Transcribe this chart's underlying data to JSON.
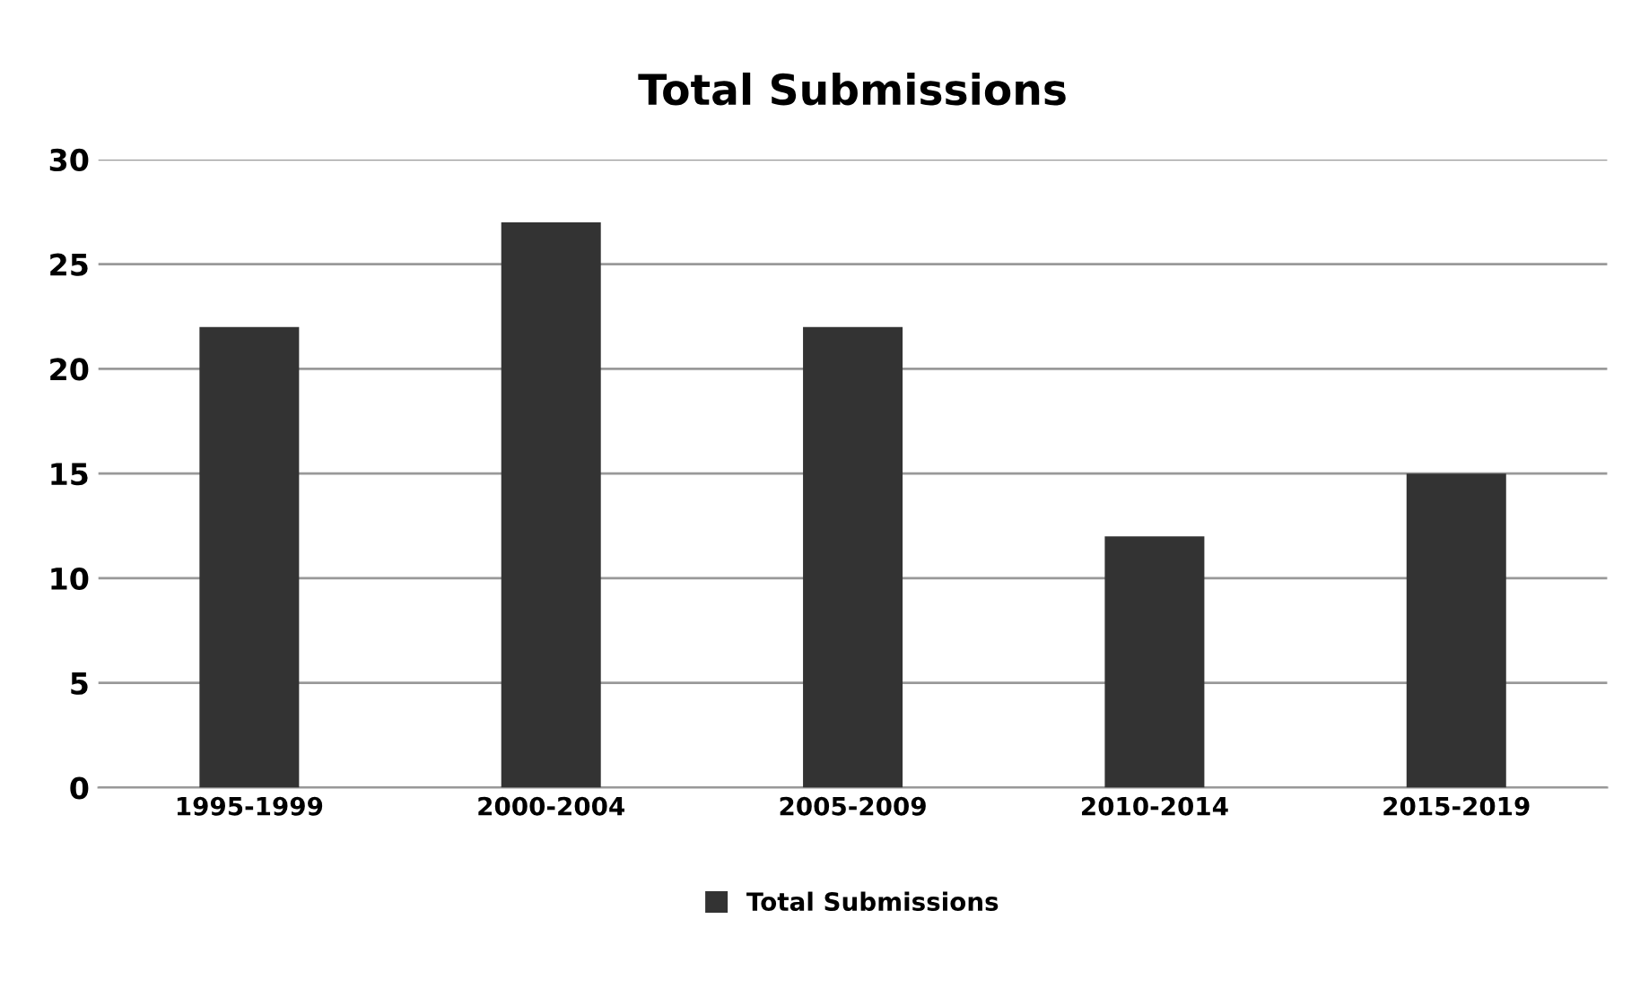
{
  "chart_data": {
    "type": "bar",
    "title": "Total Submissions",
    "categories": [
      "1995-1999",
      "2000-2004",
      "2005-2009",
      "2010-2014",
      "2015-2019"
    ],
    "series": [
      {
        "name": "Total Submissions",
        "color": "#333333",
        "values": [
          22,
          27,
          22,
          12,
          15
        ]
      }
    ],
    "ylim": [
      0,
      30
    ],
    "yticks": [
      0,
      5,
      10,
      15,
      20,
      25,
      30
    ],
    "grid": "y",
    "legend": "bottom"
  }
}
